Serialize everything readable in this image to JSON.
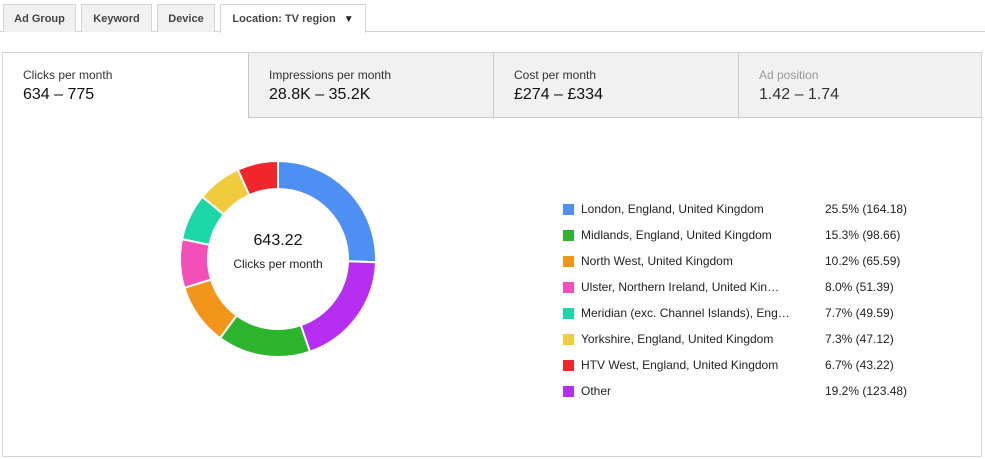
{
  "top_tabs": [
    {
      "label": "Ad Group"
    },
    {
      "label": "Keyword"
    },
    {
      "label": "Device"
    },
    {
      "label": "Location: TV region",
      "caret": "▼"
    }
  ],
  "metrics": [
    {
      "label": "Clicks per month",
      "value": "634 – 775"
    },
    {
      "label": "Impressions per month",
      "value": "28.8K – 35.2K"
    },
    {
      "label": "Cost per month",
      "value": "£274 – £334"
    },
    {
      "label": "Ad position",
      "value": "1.42 – 1.74"
    }
  ],
  "center": {
    "value": "643.22",
    "label": "Clicks per month"
  },
  "chart_data": {
    "type": "pie",
    "title": "",
    "slices": [
      {
        "name": "London, England, United Kingdom",
        "display_name": "London, England, United Kingdom",
        "percent": 25.5,
        "percent_label": "25.5% (164.18)",
        "value": 164.18,
        "color": "#4e8ff3"
      },
      {
        "name": "Other",
        "display_name": "Other",
        "percent": 19.2,
        "percent_label": "19.2% (123.48)",
        "value": 123.48,
        "color": "#b52ef2"
      },
      {
        "name": "Midlands, England, United Kingdom",
        "display_name": "Midlands, England, United Kingdom",
        "percent": 15.3,
        "percent_label": "15.3% (98.66)",
        "value": 98.66,
        "color": "#2cb52c"
      },
      {
        "name": "North West, United Kingdom",
        "display_name": "North West, United Kingdom",
        "percent": 10.2,
        "percent_label": "10.2% (65.59)",
        "value": 65.59,
        "color": "#f3951b"
      },
      {
        "name": "Ulster, Northern Ireland, United Kingdom",
        "display_name": "Ulster, Northern Ireland, United Kin…",
        "percent": 8.0,
        "percent_label": "8.0% (51.39)",
        "value": 51.39,
        "color": "#f250b8"
      },
      {
        "name": "Meridian (exc. Channel Islands), England, United Kingdom",
        "display_name": "Meridian (exc. Channel Islands), Eng…",
        "percent": 7.7,
        "percent_label": "7.7% (49.59)",
        "value": 49.59,
        "color": "#1cd7a7"
      },
      {
        "name": "Yorkshire, England, United Kingdom",
        "display_name": "Yorkshire, England, United Kingdom",
        "percent": 7.3,
        "percent_label": "7.3% (47.12)",
        "value": 47.12,
        "color": "#f0cb3c"
      },
      {
        "name": "HTV West, England, United Kingdom",
        "display_name": "HTV West, England, United Kingdom",
        "percent": 6.7,
        "percent_label": "6.7% (43.22)",
        "value": 43.22,
        "color": "#f2262a"
      }
    ],
    "legend_order": [
      0,
      2,
      3,
      4,
      5,
      6,
      7,
      1
    ],
    "legend_position": "right"
  }
}
